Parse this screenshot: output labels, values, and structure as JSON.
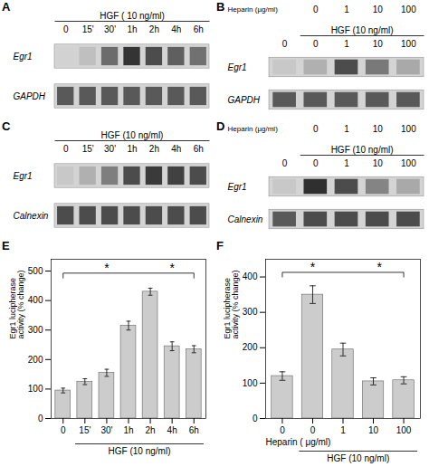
{
  "chart_data": [
    {
      "type": "blot",
      "panel_label": "A",
      "title": "HGF ( 10 ng/ml)",
      "categories": [
        "0",
        "15'",
        "30'",
        "1h",
        "2h",
        "4h",
        "6h"
      ],
      "series": [
        {
          "name": "Egr1",
          "values": [
            0.0,
            0.1,
            0.55,
            0.85,
            0.72,
            0.62,
            0.52
          ]
        },
        {
          "name": "GAPDH",
          "values": [
            0.65,
            0.65,
            0.65,
            0.65,
            0.65,
            0.65,
            0.65
          ]
        }
      ]
    },
    {
      "type": "blot",
      "panel_label": "B",
      "title": "HGF (10 ng/ml)",
      "heparin_label": "Heparin (µg/ml)",
      "heparin_values": [
        null,
        "0",
        "1",
        "10",
        "100"
      ],
      "categories": [
        "0",
        "0",
        "1",
        "10",
        "100"
      ],
      "series": [
        {
          "name": "Egr1",
          "values": [
            0.05,
            0.18,
            0.72,
            0.48,
            0.22
          ]
        },
        {
          "name": "GAPDH",
          "values": [
            0.65,
            0.65,
            0.65,
            0.65,
            0.65
          ]
        }
      ]
    },
    {
      "type": "blot",
      "panel_label": "C",
      "title": "HGF (10 ng/ml)",
      "categories": [
        "0",
        "15'",
        "30'",
        "1h",
        "2h",
        "4h",
        "6h"
      ],
      "series": [
        {
          "name": "Egr1",
          "values": [
            0.05,
            0.18,
            0.45,
            0.72,
            0.82,
            0.78,
            0.72
          ]
        },
        {
          "name": "Calnexin",
          "values": [
            0.72,
            0.72,
            0.72,
            0.72,
            0.72,
            0.72,
            0.72
          ]
        }
      ]
    },
    {
      "type": "blot",
      "panel_label": "D",
      "title": "HGF (10 ng/ml)",
      "heparin_label": "Heparin (µg/ml)",
      "heparin_values": [
        null,
        "0",
        "1",
        "10",
        "100"
      ],
      "categories": [
        "0",
        "0",
        "1",
        "10",
        "100"
      ],
      "series": [
        {
          "name": "Egr1",
          "values": [
            0.05,
            0.88,
            0.72,
            0.42,
            0.22
          ]
        },
        {
          "name": "Calnexin",
          "values": [
            0.65,
            0.72,
            0.72,
            0.72,
            0.72
          ]
        }
      ]
    },
    {
      "type": "bar",
      "panel_label": "E",
      "categories": [
        "0",
        "15'",
        "30'",
        "1h",
        "2h",
        "4h",
        "6h"
      ],
      "values": [
        95,
        125,
        155,
        315,
        430,
        245,
        235
      ],
      "errors": [
        8,
        10,
        12,
        15,
        12,
        15,
        12
      ],
      "color": "#cccccc",
      "ylim": [
        0,
        540
      ],
      "yticks": [
        0,
        100,
        200,
        300,
        400,
        500
      ],
      "ylabel": "Egr1 lucipherase\nactivity (% change)",
      "groups": [
        {
          "label": "HGF (10 ng/ml)",
          "from": 1,
          "to": 6
        }
      ],
      "brackets": [
        {
          "from": 0,
          "to": 6,
          "y": 493,
          "y_end": 475
        }
      ],
      "annotations": [
        {
          "text": "*",
          "x": 2,
          "y": 497
        },
        {
          "text": "*",
          "x": 5,
          "y": 497
        }
      ]
    },
    {
      "type": "bar",
      "panel_label": "F",
      "categories": [
        "0",
        "0",
        "1",
        "10",
        "100"
      ],
      "values": [
        120,
        350,
        195,
        105,
        108
      ],
      "errors": [
        12,
        25,
        18,
        10,
        10
      ],
      "color": "#cccccc",
      "ylim": [
        0,
        450
      ],
      "yticks": [
        0,
        100,
        200,
        300,
        400
      ],
      "ylabel": "Egr1 lucipherase\nactivity (% change)",
      "xlabel": "Heparin ( μg/ml)",
      "groups": [
        {
          "label": "HGF (10 ng/ml)",
          "from": 1,
          "to": 4
        }
      ],
      "brackets": [
        {
          "from": 0,
          "to": 4,
          "y": 413,
          "y_end": 399
        }
      ],
      "annotations": [
        {
          "text": "*",
          "x": 1,
          "y": 416
        },
        {
          "text": "*",
          "x": 3.2,
          "y": 416
        }
      ]
    }
  ]
}
